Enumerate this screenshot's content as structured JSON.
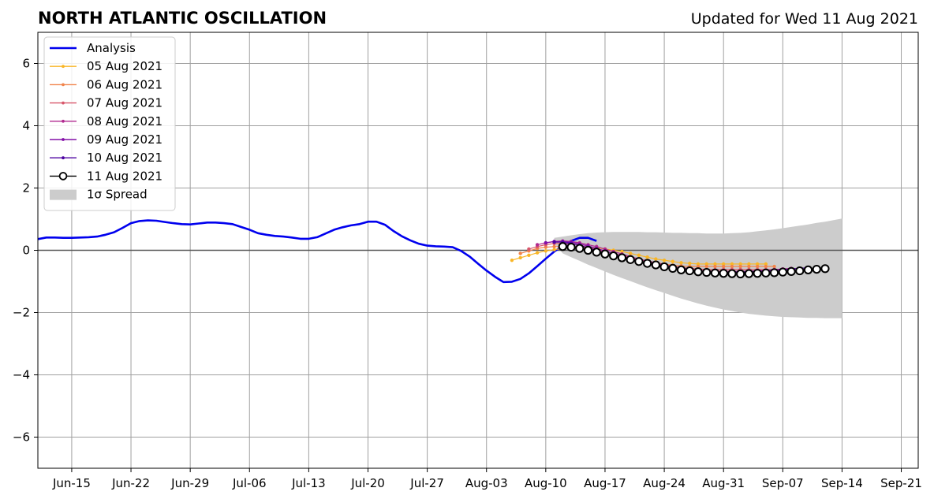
{
  "chart_data": {
    "type": "line",
    "title": "NORTH ATLANTIC OSCILLATION",
    "subtitle": "Updated for Wed 11 Aug 2021",
    "xlabel": "",
    "ylabel": "",
    "xlim": [
      "2021-06-11",
      "2021-09-23"
    ],
    "ylim": [
      -7,
      7
    ],
    "grid": true,
    "legend_position": "top-left",
    "x_ticks": [
      {
        "date": "2021-06-15",
        "label": "Jun-15"
      },
      {
        "date": "2021-06-22",
        "label": "Jun-22"
      },
      {
        "date": "2021-06-29",
        "label": "Jun-29"
      },
      {
        "date": "2021-07-06",
        "label": "Jul-06"
      },
      {
        "date": "2021-07-13",
        "label": "Jul-13"
      },
      {
        "date": "2021-07-20",
        "label": "Jul-20"
      },
      {
        "date": "2021-07-27",
        "label": "Jul-27"
      },
      {
        "date": "2021-08-03",
        "label": "Aug-03"
      },
      {
        "date": "2021-08-10",
        "label": "Aug-10"
      },
      {
        "date": "2021-08-17",
        "label": "Aug-17"
      },
      {
        "date": "2021-08-24",
        "label": "Aug-24"
      },
      {
        "date": "2021-08-31",
        "label": "Aug-31"
      },
      {
        "date": "2021-09-07",
        "label": "Sep-07"
      },
      {
        "date": "2021-09-14",
        "label": "Sep-14"
      },
      {
        "date": "2021-09-21",
        "label": "Sep-21"
      }
    ],
    "y_ticks": [
      {
        "value": 6,
        "label": "6"
      },
      {
        "value": 4,
        "label": "4"
      },
      {
        "value": 2,
        "label": "2"
      },
      {
        "value": 0,
        "label": "0"
      },
      {
        "value": -2,
        "label": "−2"
      },
      {
        "value": -4,
        "label": "−4"
      },
      {
        "value": -6,
        "label": "−6"
      }
    ],
    "analysis": {
      "name": "Analysis",
      "color": "#0000ee",
      "start_date": "2021-06-11",
      "values": [
        0.36,
        0.41,
        0.41,
        0.4,
        0.4,
        0.41,
        0.42,
        0.44,
        0.5,
        0.58,
        0.72,
        0.87,
        0.94,
        0.96,
        0.95,
        0.91,
        0.87,
        0.84,
        0.83,
        0.86,
        0.89,
        0.89,
        0.87,
        0.84,
        0.75,
        0.66,
        0.55,
        0.5,
        0.46,
        0.44,
        0.41,
        0.37,
        0.37,
        0.42,
        0.54,
        0.66,
        0.74,
        0.8,
        0.84,
        0.92,
        0.92,
        0.82,
        0.62,
        0.45,
        0.32,
        0.21,
        0.15,
        0.13,
        0.12,
        0.1,
        -0.02,
        -0.2,
        -0.43,
        -0.65,
        -0.85,
        -1.02,
        -1.01,
        -0.92,
        -0.74,
        -0.51,
        -0.27,
        -0.04,
        0.14,
        0.3,
        0.4,
        0.4,
        0.3
      ]
    },
    "forecasts": [
      {
        "name": "05 Aug 2021",
        "color": "#f9b627",
        "start_date": "2021-08-06",
        "values": [
          -0.32,
          -0.24,
          -0.16,
          -0.08,
          -0.02,
          0.02,
          0.06,
          0.1,
          0.12,
          0.1,
          0.08,
          0.04,
          0.0,
          -0.04,
          -0.1,
          -0.16,
          -0.22,
          -0.28,
          -0.32,
          -0.36,
          -0.4,
          -0.42,
          -0.44,
          -0.44,
          -0.44,
          -0.44,
          -0.44,
          -0.44,
          -0.44,
          -0.44,
          -0.44
        ]
      },
      {
        "name": "06 Aug 2021",
        "color": "#f1844b",
        "start_date": "2021-08-07",
        "values": [
          -0.1,
          -0.02,
          0.06,
          0.1,
          0.12,
          0.12,
          0.12,
          0.1,
          0.06,
          0.02,
          -0.04,
          -0.1,
          -0.16,
          -0.22,
          -0.28,
          -0.34,
          -0.4,
          -0.44,
          -0.48,
          -0.5,
          -0.52,
          -0.52,
          -0.52,
          -0.52,
          -0.52,
          -0.52,
          -0.52,
          -0.52,
          -0.52,
          -0.52,
          -0.52
        ]
      },
      {
        "name": "07 Aug 2021",
        "color": "#d8576b",
        "start_date": "2021-08-08",
        "values": [
          0.04,
          0.12,
          0.18,
          0.22,
          0.22,
          0.2,
          0.16,
          0.1,
          0.04,
          -0.04,
          -0.1,
          -0.18,
          -0.24,
          -0.3,
          -0.36,
          -0.42,
          -0.48,
          -0.52,
          -0.56,
          -0.58,
          -0.6,
          -0.62,
          -0.62,
          -0.62,
          -0.62,
          -0.62,
          -0.62,
          -0.62,
          -0.62,
          -0.62,
          -0.6
        ]
      },
      {
        "name": "08 Aug 2021",
        "color": "#b12a90",
        "start_date": "2021-08-09",
        "values": [
          0.18,
          0.24,
          0.28,
          0.3,
          0.28,
          0.24,
          0.18,
          0.12,
          0.04,
          -0.04,
          -0.12,
          -0.2,
          -0.28,
          -0.34,
          -0.4,
          -0.46,
          -0.52,
          -0.56,
          -0.6,
          -0.64,
          -0.66,
          -0.68,
          -0.68,
          -0.68,
          -0.68,
          -0.68,
          -0.66,
          -0.64,
          -0.62,
          -0.6,
          -0.58
        ]
      },
      {
        "name": "09 Aug 2021",
        "color": "#8410a8",
        "start_date": "2021-08-10",
        "values": [
          0.24,
          0.28,
          0.28,
          0.26,
          0.2,
          0.14,
          0.06,
          -0.02,
          -0.1,
          -0.18,
          -0.26,
          -0.34,
          -0.4,
          -0.46,
          -0.52,
          -0.58,
          -0.62,
          -0.66,
          -0.68,
          -0.7,
          -0.7,
          -0.7,
          -0.7,
          -0.68,
          -0.68,
          -0.66,
          -0.66,
          -0.64,
          -0.62,
          -0.6,
          -0.58
        ]
      },
      {
        "name": "10 Aug 2021",
        "color": "#4c02a1",
        "start_date": "2021-08-11",
        "values": [
          0.26,
          0.26,
          0.22,
          0.16,
          0.08,
          0.0,
          -0.08,
          -0.16,
          -0.24,
          -0.32,
          -0.38,
          -0.44,
          -0.5,
          -0.56,
          -0.6,
          -0.64,
          -0.68,
          -0.7,
          -0.72,
          -0.72,
          -0.72,
          -0.72,
          -0.7,
          -0.7,
          -0.68,
          -0.66,
          -0.64,
          -0.62,
          -0.6,
          -0.58,
          -0.56
        ]
      },
      {
        "name": "11 Aug 2021",
        "color": "#000000",
        "start_date": "2021-08-12",
        "values": [
          0.12,
          0.1,
          0.06,
          0.0,
          -0.06,
          -0.12,
          -0.18,
          -0.24,
          -0.3,
          -0.36,
          -0.42,
          -0.47,
          -0.53,
          -0.58,
          -0.63,
          -0.66,
          -0.69,
          -0.71,
          -0.73,
          -0.74,
          -0.75,
          -0.76,
          -0.75,
          -0.74,
          -0.73,
          -0.72,
          -0.7,
          -0.68,
          -0.66,
          -0.63,
          -0.61,
          -0.59
        ]
      }
    ],
    "spread": {
      "name": "1σ Spread",
      "color": "#cccccc",
      "start_date": "2021-08-11",
      "upper": [
        0.4,
        0.44,
        0.48,
        0.52,
        0.55,
        0.57,
        0.58,
        0.59,
        0.59,
        0.59,
        0.59,
        0.58,
        0.58,
        0.57,
        0.56,
        0.56,
        0.55,
        0.55,
        0.54,
        0.54,
        0.54,
        0.55,
        0.56,
        0.58,
        0.61,
        0.64,
        0.67,
        0.71,
        0.75,
        0.79,
        0.83,
        0.88,
        0.92,
        0.97,
        1.02
      ],
      "lower": [
        0.22,
        -0.1,
        -0.22,
        -0.34,
        -0.46,
        -0.57,
        -0.68,
        -0.79,
        -0.89,
        -0.99,
        -1.09,
        -1.19,
        -1.28,
        -1.37,
        -1.46,
        -1.55,
        -1.63,
        -1.71,
        -1.78,
        -1.84,
        -1.9,
        -1.95,
        -2.0,
        -2.04,
        -2.07,
        -2.1,
        -2.12,
        -2.14,
        -2.15,
        -2.16,
        -2.17,
        -2.17,
        -2.18,
        -2.18,
        -2.18
      ]
    }
  }
}
